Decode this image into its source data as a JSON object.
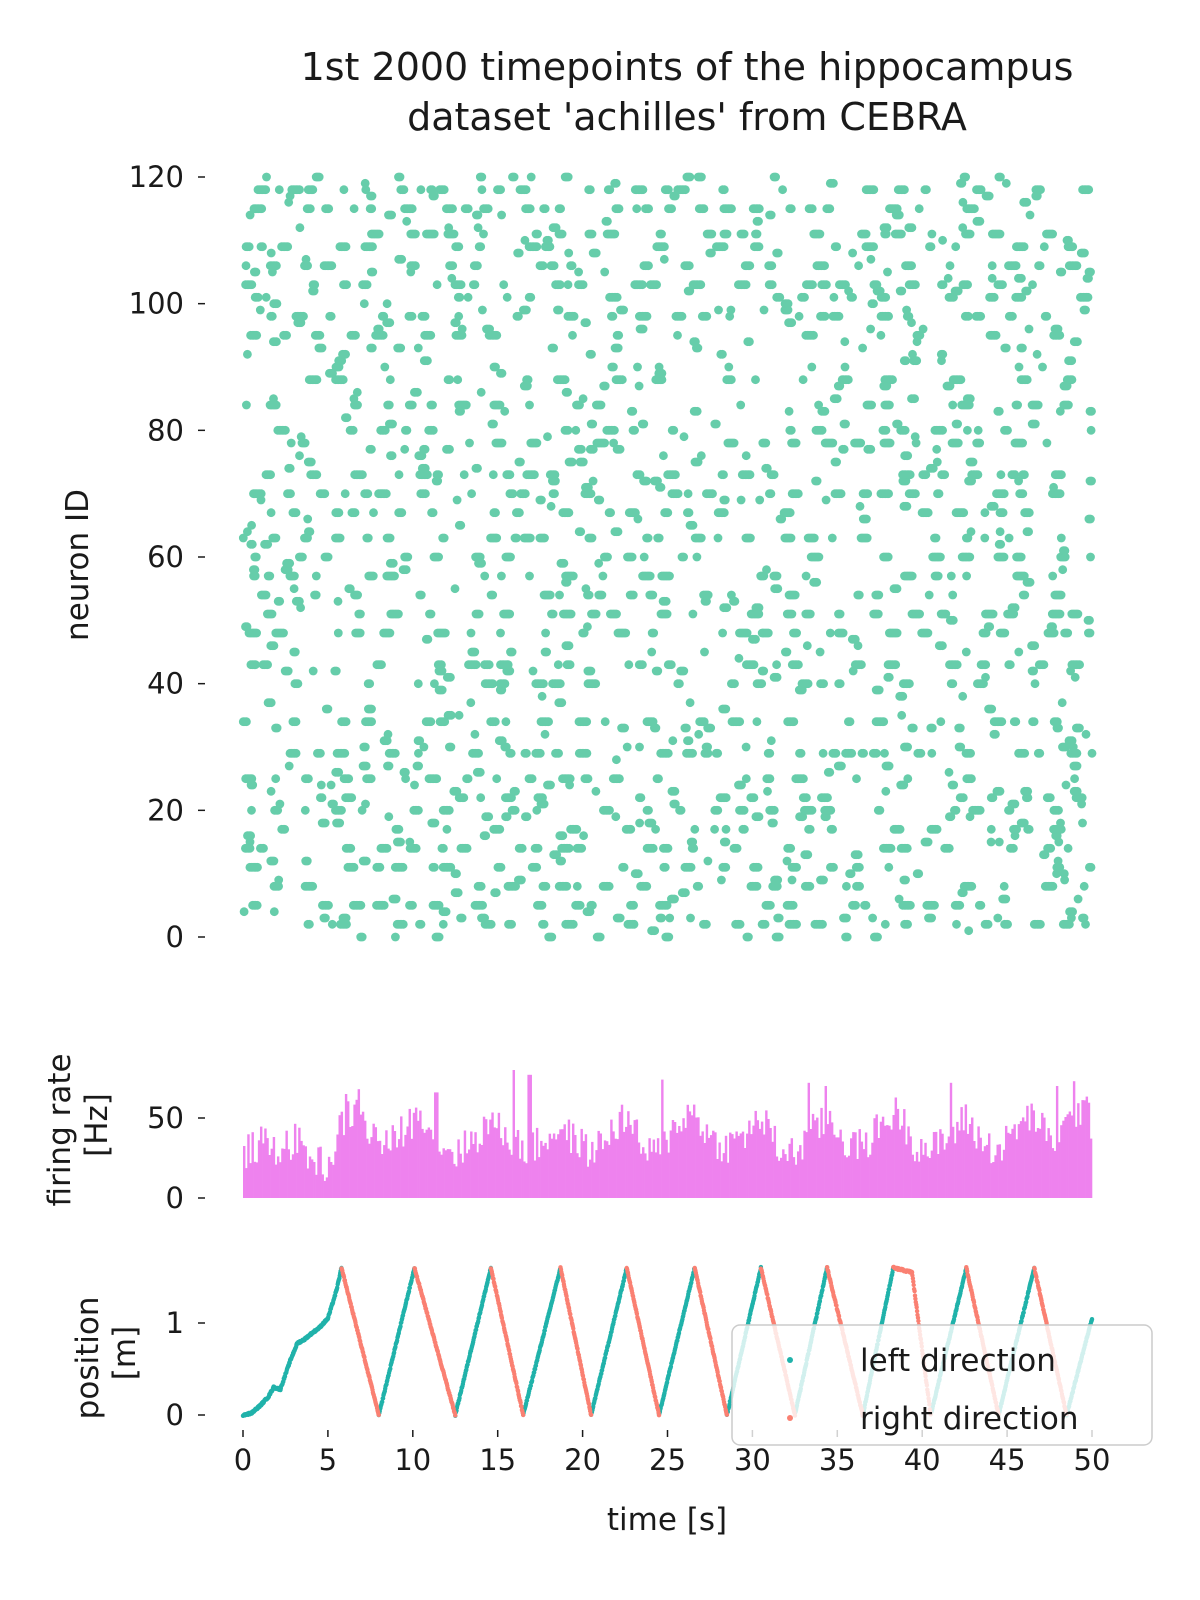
{
  "figure": {
    "title_lines": [
      "1st 2000 timepoints of the hippocampus",
      "dataset 'achilles' from CEBRA"
    ],
    "background": "#ffffff"
  },
  "chart_data": [
    {
      "id": "raster",
      "type": "scatter",
      "description_of_marks": "spike raster",
      "ylabel": "neuron ID",
      "xlim": [
        0,
        50
      ],
      "ylim": [
        0,
        120
      ],
      "yticks": [
        0,
        20,
        40,
        60,
        80,
        100,
        120
      ],
      "grid": false,
      "color": "#66cdaa",
      "time_bins": 2000,
      "n_neurons": 120,
      "dense_neuron_rows": [
        2,
        5,
        8,
        11,
        14,
        17,
        20,
        22,
        25,
        29,
        34,
        40,
        43,
        48,
        51,
        54,
        57,
        60,
        63,
        67,
        70,
        73,
        78,
        80,
        84,
        88,
        95,
        98,
        101,
        103,
        106,
        109,
        111,
        115,
        118
      ]
    },
    {
      "id": "firing_rate",
      "type": "bar",
      "ylabel": "firing rate\n[Hz]",
      "xlim": [
        0,
        50
      ],
      "ylim": [
        0,
        75
      ],
      "yticks": [
        0,
        50
      ],
      "grid": false,
      "color": "#ee82ee",
      "n_bins": 400,
      "envelope": {
        "x": [
          0,
          1,
          2,
          3,
          4,
          5,
          5.8,
          6.5,
          7.5,
          8.5,
          9.5,
          10.5,
          11.5,
          12.5,
          13.5,
          14.5,
          15.5,
          16.5,
          17.5,
          18.5,
          19.5,
          20.5,
          21.5,
          22.5,
          23.5,
          24.5,
          25.5,
          26.5,
          27.5,
          28.5,
          29.5,
          30.5,
          31.5,
          32.5,
          33.5,
          34.5,
          35.5,
          36.5,
          37.5,
          38.5,
          39.5,
          40.5,
          41.5,
          42.5,
          43.5,
          44.5,
          45.5,
          46.5,
          47.5,
          48.5,
          49.5,
          50
        ],
        "y": [
          28,
          34,
          30,
          36,
          24,
          20,
          48,
          55,
          40,
          32,
          44,
          54,
          34,
          28,
          36,
          48,
          38,
          30,
          34,
          44,
          36,
          28,
          40,
          52,
          30,
          28,
          48,
          54,
          36,
          32,
          40,
          50,
          30,
          28,
          42,
          50,
          34,
          32,
          46,
          54,
          34,
          30,
          38,
          50,
          34,
          30,
          44,
          52,
          34,
          46,
          58,
          40
        ]
      },
      "peak_markers": [
        {
          "x": 6.0,
          "y": 65
        },
        {
          "x": 6.7,
          "y": 68
        },
        {
          "x": 11.3,
          "y": 66
        },
        {
          "x": 15.9,
          "y": 80
        },
        {
          "x": 16.8,
          "y": 77
        },
        {
          "x": 24.6,
          "y": 74
        },
        {
          "x": 33.2,
          "y": 72
        },
        {
          "x": 34.2,
          "y": 70
        },
        {
          "x": 41.6,
          "y": 72
        },
        {
          "x": 47.9,
          "y": 70
        },
        {
          "x": 48.9,
          "y": 73
        }
      ]
    },
    {
      "id": "position",
      "type": "scatter",
      "ylabel": "position\n[m]",
      "xlabel": "time [s]",
      "xlim": [
        0,
        50
      ],
      "ylim": [
        0,
        1.6
      ],
      "xticks": [
        0,
        5,
        10,
        15,
        20,
        25,
        30,
        35,
        40,
        45,
        50
      ],
      "yticks": [
        0,
        1
      ],
      "grid": false,
      "legend": {
        "placement": "right, over the plot",
        "entries": [
          {
            "label": "left direction",
            "color": "#20b2aa"
          },
          {
            "label": "right direction",
            "color": "#fa8072"
          }
        ]
      },
      "series": [
        {
          "name": "left direction",
          "color": "#20b2aa",
          "segments": [
            {
              "x": [
                0,
                0.5,
                1.0,
                1.5,
                1.8,
                2.2,
                2.8,
                3.2,
                3.6,
                4.0,
                4.5,
                5.0,
                5.5,
                5.8
              ],
              "y": [
                0.0,
                0.02,
                0.1,
                0.2,
                0.3,
                0.28,
                0.6,
                0.78,
                0.82,
                0.88,
                0.95,
                1.05,
                1.35,
                1.6
              ]
            },
            {
              "x": [
                8.0,
                10.1
              ],
              "y": [
                0.0,
                1.6
              ]
            },
            {
              "x": [
                12.5,
                14.6
              ],
              "y": [
                0.0,
                1.6
              ]
            },
            {
              "x": [
                16.5,
                18.7
              ],
              "y": [
                0.0,
                1.6
              ]
            },
            {
              "x": [
                20.5,
                22.6
              ],
              "y": [
                0.0,
                1.6
              ]
            },
            {
              "x": [
                24.5,
                26.6
              ],
              "y": [
                0.0,
                1.6
              ]
            },
            {
              "x": [
                28.5,
                30.5
              ],
              "y": [
                0.0,
                1.6
              ]
            },
            {
              "x": [
                32.5,
                34.4
              ],
              "y": [
                0.0,
                1.6
              ]
            },
            {
              "x": [
                36.5,
                38.3
              ],
              "y": [
                0.0,
                1.6
              ]
            },
            {
              "x": [
                40.5,
                42.6
              ],
              "y": [
                0.0,
                1.6
              ]
            },
            {
              "x": [
                44.5,
                46.6
              ],
              "y": [
                0.0,
                1.6
              ]
            },
            {
              "x": [
                48.5,
                50.0
              ],
              "y": [
                0.0,
                1.05
              ]
            }
          ]
        },
        {
          "name": "right direction",
          "color": "#fa8072",
          "segments": [
            {
              "x": [
                5.8,
                8.0
              ],
              "y": [
                1.6,
                0.0
              ]
            },
            {
              "x": [
                10.1,
                12.5
              ],
              "y": [
                1.6,
                0.0
              ]
            },
            {
              "x": [
                14.6,
                16.5
              ],
              "y": [
                1.6,
                0.0
              ]
            },
            {
              "x": [
                18.7,
                20.5
              ],
              "y": [
                1.6,
                0.0
              ]
            },
            {
              "x": [
                22.6,
                24.5
              ],
              "y": [
                1.6,
                0.0
              ]
            },
            {
              "x": [
                26.6,
                28.5
              ],
              "y": [
                1.6,
                0.0
              ]
            },
            {
              "x": [
                30.5,
                32.5
              ],
              "y": [
                1.6,
                0.0
              ]
            },
            {
              "x": [
                34.4,
                36.5
              ],
              "y": [
                1.6,
                0.0
              ]
            },
            {
              "x": [
                38.3,
                39.4,
                40.5
              ],
              "y": [
                1.6,
                1.55,
                0.0
              ]
            },
            {
              "x": [
                42.6,
                44.5
              ],
              "y": [
                1.6,
                0.0
              ]
            },
            {
              "x": [
                46.6,
                48.5
              ],
              "y": [
                1.6,
                0.0
              ]
            }
          ]
        }
      ]
    }
  ]
}
